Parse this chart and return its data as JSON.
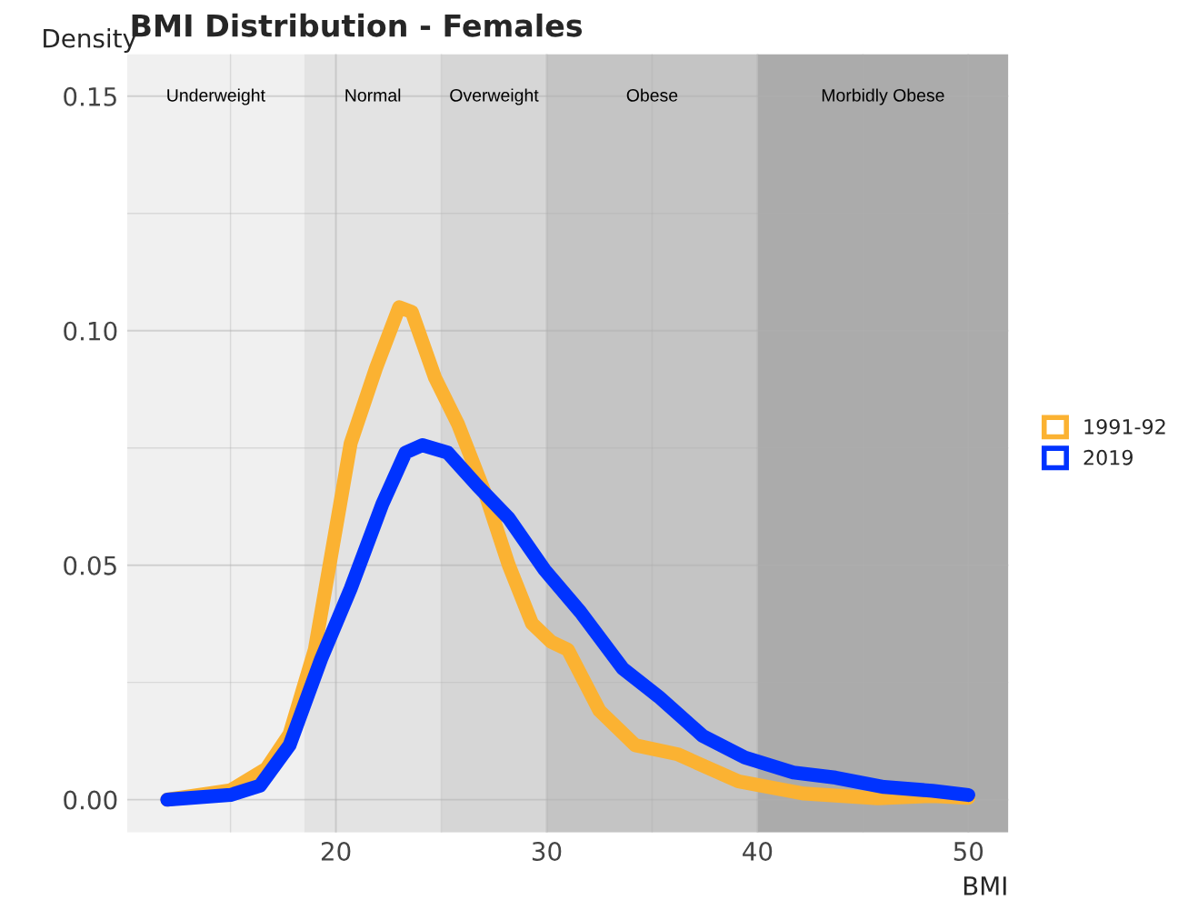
{
  "chart_data": {
    "type": "line",
    "title": "BMI Distribution - Females",
    "xlabel": "BMI",
    "ylabel": "Density",
    "xlim": [
      10.1,
      51.9
    ],
    "ylim": [
      -0.007,
      0.159
    ],
    "xticks": [
      20,
      30,
      40,
      50
    ],
    "yticks": [
      {
        "value": 0,
        "label": "0.00"
      },
      0.05,
      {
        "value": 0.1,
        "label": "0.10"
      },
      0.15
    ],
    "grid": true,
    "legend": "right",
    "line_style": "solid",
    "bands": [
      {
        "axis": "x",
        "from": 10.1,
        "to": 18.5,
        "label": "Underweight",
        "color": "#f0f0f0"
      },
      {
        "axis": "x",
        "from": 18.5,
        "to": 25,
        "label": "Normal",
        "color": "#e3e3e3"
      },
      {
        "axis": "x",
        "from": 25,
        "to": 30,
        "label": "Overweight",
        "color": "#d6d6d6"
      },
      {
        "axis": "x",
        "from": 30,
        "to": 40,
        "label": "Obese",
        "color": "#c4c4c4"
      },
      {
        "axis": "x",
        "from": 40,
        "to": 51.9,
        "label": "Morbidly Obese",
        "color": "#ababab"
      }
    ],
    "series": [
      {
        "name": "1991-92",
        "color": "#fbb232",
        "x": [
          12,
          15,
          16.7,
          17.8,
          19,
          20.2,
          20.7,
          21.9,
          23.0,
          23.6,
          24.7,
          25.8,
          27.1,
          28.2,
          29.3,
          30.2,
          31.0,
          32.5,
          34.2,
          36.2,
          39.1,
          42.2,
          45.7,
          48.3,
          50
        ],
        "values": [
          0,
          0.002,
          0.0066,
          0.014,
          0.032,
          0.063,
          0.076,
          0.092,
          0.105,
          0.104,
          0.09,
          0.08,
          0.065,
          0.05,
          0.0376,
          0.0337,
          0.032,
          0.019,
          0.0116,
          0.0097,
          0.0039,
          0.0013,
          0.0003,
          0.0008,
          0.0004
        ]
      },
      {
        "name": "2019",
        "color": "#0033ff",
        "x": [
          12,
          15,
          16.4,
          17.8,
          19.3,
          20.7,
          22.2,
          23.3,
          24.1,
          25.3,
          26.7,
          28.2,
          29.9,
          31.6,
          33.6,
          35.3,
          37.4,
          39.4,
          41.7,
          43.7,
          46.0,
          48.3,
          50
        ],
        "values": [
          0,
          0.001,
          0.003,
          0.0116,
          0.03,
          0.045,
          0.063,
          0.074,
          0.0756,
          0.074,
          0.067,
          0.06,
          0.049,
          0.04,
          0.028,
          0.022,
          0.0136,
          0.009,
          0.0058,
          0.0047,
          0.0027,
          0.0019,
          0.001
        ]
      }
    ]
  }
}
